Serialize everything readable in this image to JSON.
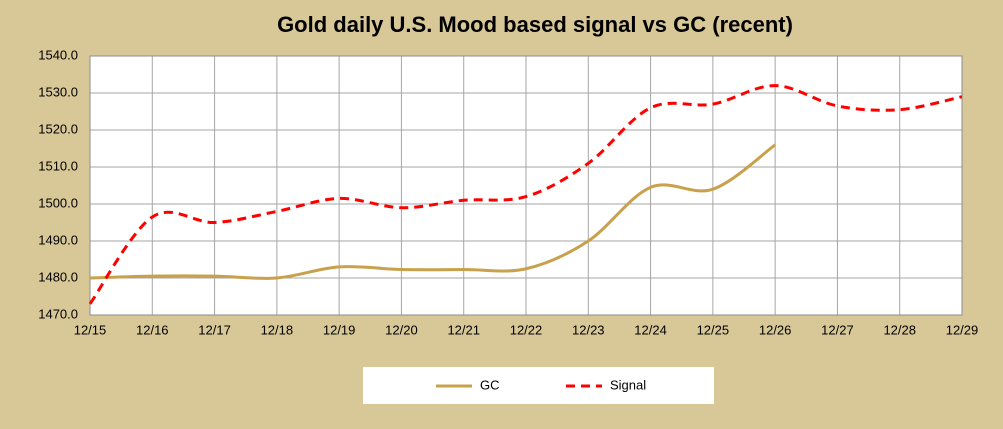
{
  "chart_data": {
    "type": "line",
    "title": "Gold daily U.S. Mood based signal vs GC (recent)",
    "categories": [
      "12/15",
      "12/16",
      "12/17",
      "12/18",
      "12/19",
      "12/20",
      "12/21",
      "12/22",
      "12/23",
      "12/24",
      "12/25",
      "12/26",
      "12/27",
      "12/28",
      "12/29"
    ],
    "series": [
      {
        "name": "GC",
        "color": "#c9a04c",
        "dashed": false,
        "values": [
          1480,
          1480.5,
          1480.5,
          1480,
          1483,
          1482.3,
          1482.3,
          1482.5,
          1490,
          1504.5,
          1504,
          1516,
          null,
          null,
          null
        ]
      },
      {
        "name": "Signal",
        "color": "#ff0000",
        "dashed": true,
        "values": [
          1473,
          1496.5,
          1495,
          1498,
          1501.5,
          1499,
          1501,
          1502,
          1511,
          1526,
          1527,
          1532,
          1526.5,
          1525.5,
          1529
        ]
      }
    ],
    "ylim": [
      1470,
      1540
    ],
    "yticks": [
      {
        "value": 1470,
        "label": "1470.0"
      },
      {
        "value": 1480,
        "label": "1480.0"
      },
      {
        "value": 1490,
        "label": "1490.0"
      },
      {
        "value": 1500,
        "label": "1500.0"
      },
      {
        "value": 1510,
        "label": "1510.0"
      },
      {
        "value": 1520,
        "label": "1520.0"
      },
      {
        "value": 1530,
        "label": "1530.0"
      },
      {
        "value": 1540,
        "label": "1540.0"
      }
    ],
    "grid": true,
    "legend": "bottom"
  }
}
